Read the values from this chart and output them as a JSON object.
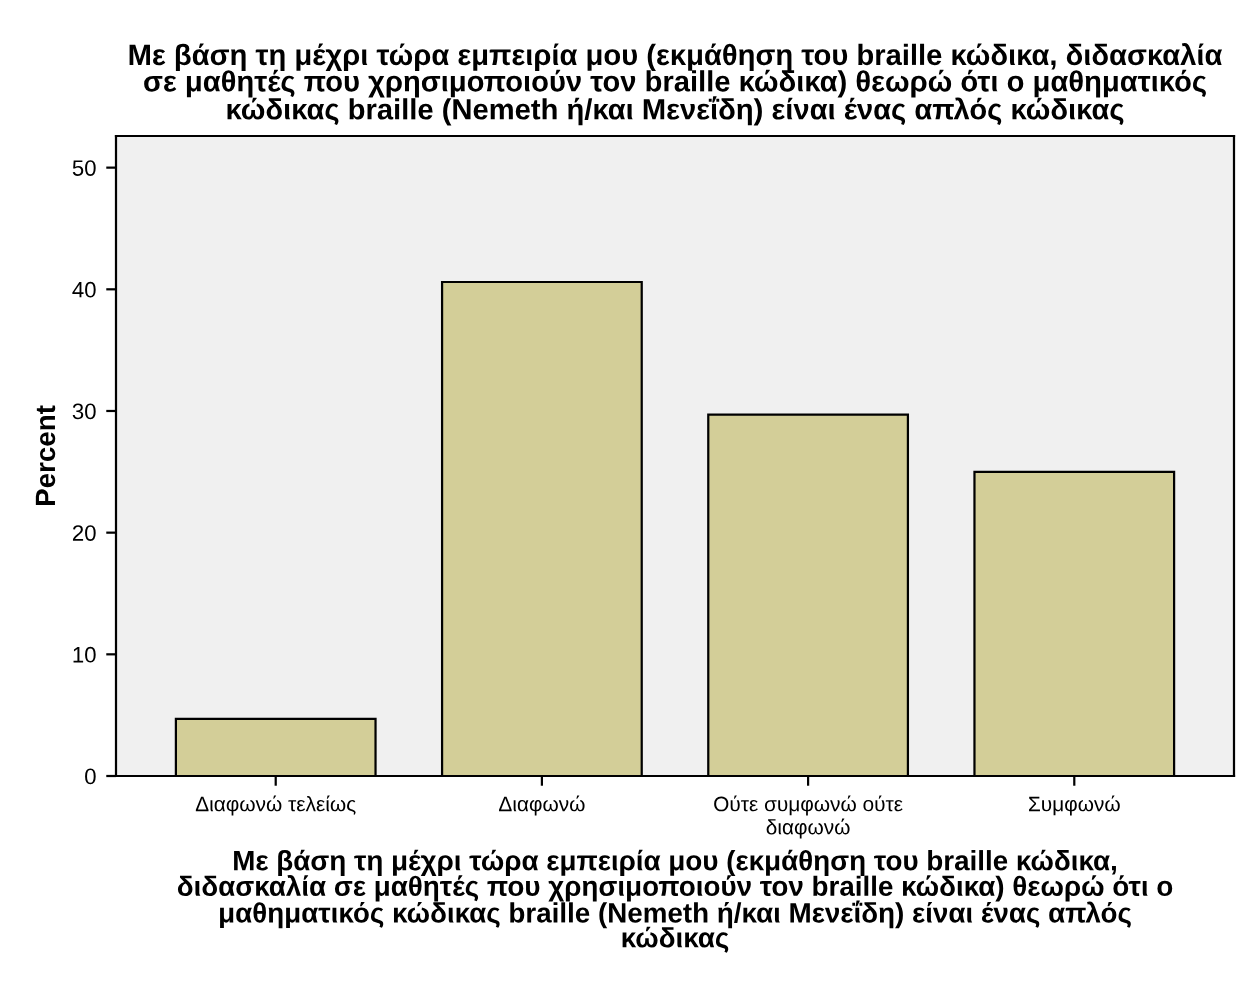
{
  "chart_data": {
    "type": "bar",
    "title": "Με βάση τη μέχρι τώρα εμπειρία μου (εκμάθηση του braille κώδικα, διδασκαλία\nσε μαθητές που χρησιμοποιούν τον braille κώδικα) θεωρώ ότι ο μαθηματικός\nκώδικας braille (Nemeth ή/και Μενεΐδη) είναι ένας απλός κώδικας",
    "xlabel": "Με βάση τη μέχρι τώρα εμπειρία μου (εκμάθηση του braille κώδικα,\nδιδασκαλία σε μαθητές που χρησιμοποιούν τον braille κώδικα) θεωρώ ότι ο\nμαθηματικός κώδικας braille (Nemeth ή/και Μενεΐδη) είναι ένας απλός\nκώδικας",
    "ylabel": "Percent",
    "categories": [
      "Διαφωνώ τελείως",
      "Διαφωνώ",
      "Ούτε συμφωνώ ούτε\nδιαφωνώ",
      "Συμφωνώ"
    ],
    "values": [
      4.7,
      40.6,
      29.7,
      25.0
    ],
    "color": "#d3ce98",
    "ylim": [
      0,
      52.6
    ],
    "yticks": [
      0,
      10,
      20,
      30,
      40,
      50
    ],
    "grid": false
  }
}
